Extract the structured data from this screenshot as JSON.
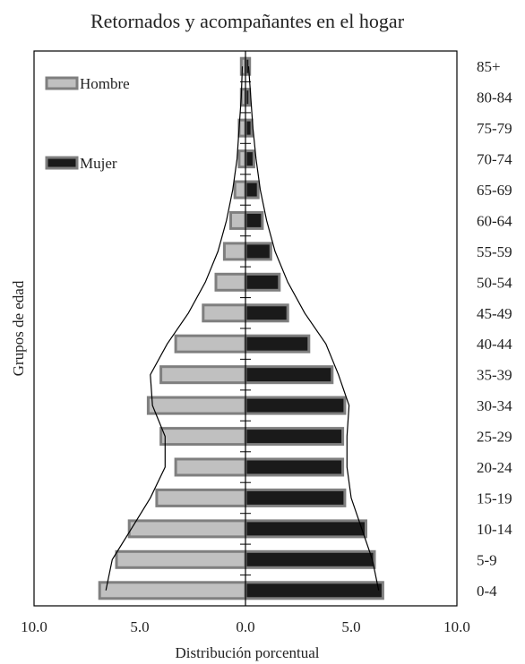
{
  "chart_data": {
    "type": "bar",
    "orientation": "horizontal",
    "subtype": "population-pyramid",
    "title": "Retornados y acompañantes en el hogar",
    "xlabel": "Distribución porcentual",
    "ylabel": "Grupos de edad",
    "x_tick_labels": [
      "10.0",
      "5.0",
      "0.0",
      "5.0",
      "10.0"
    ],
    "xlim": [
      -10,
      10
    ],
    "categories": [
      "0-4",
      "5-9",
      "10-14",
      "15-19",
      "20-24",
      "25-29",
      "30-34",
      "35-39",
      "40-44",
      "45-49",
      "50-54",
      "55-59",
      "60-64",
      "65-69",
      "70-74",
      "75-79",
      "80-84",
      "85+"
    ],
    "series": [
      {
        "name": "Hombre",
        "color": "#c0c0c0",
        "edge_color": "#7f7f7f",
        "values": [
          6.9,
          6.1,
          5.5,
          4.2,
          3.3,
          4.0,
          4.6,
          4.0,
          3.3,
          2.0,
          1.4,
          1.0,
          0.7,
          0.5,
          0.3,
          0.3,
          0.2,
          0.2
        ]
      },
      {
        "name": "Mujer",
        "color": "#1a1a1a",
        "edge_color": "#7f7f7f",
        "values": [
          6.5,
          6.1,
          5.7,
          4.7,
          4.6,
          4.6,
          4.7,
          4.1,
          3.0,
          2.0,
          1.6,
          1.2,
          0.8,
          0.6,
          0.4,
          0.3,
          0.2,
          0.2
        ]
      }
    ],
    "outline": {
      "left": [
        6.6,
        6.3,
        5.4,
        4.5,
        3.8,
        3.8,
        4.4,
        4.5,
        3.7,
        2.7,
        1.9,
        1.3,
        0.9,
        0.6,
        0.4,
        0.3,
        0.2,
        0.15
      ],
      "right": [
        6.3,
        6.0,
        5.5,
        5.0,
        4.8,
        4.8,
        4.9,
        4.4,
        3.8,
        2.8,
        2.0,
        1.4,
        1.0,
        0.7,
        0.5,
        0.35,
        0.25,
        0.15
      ]
    },
    "grid": false,
    "legend_position": "top-left"
  }
}
